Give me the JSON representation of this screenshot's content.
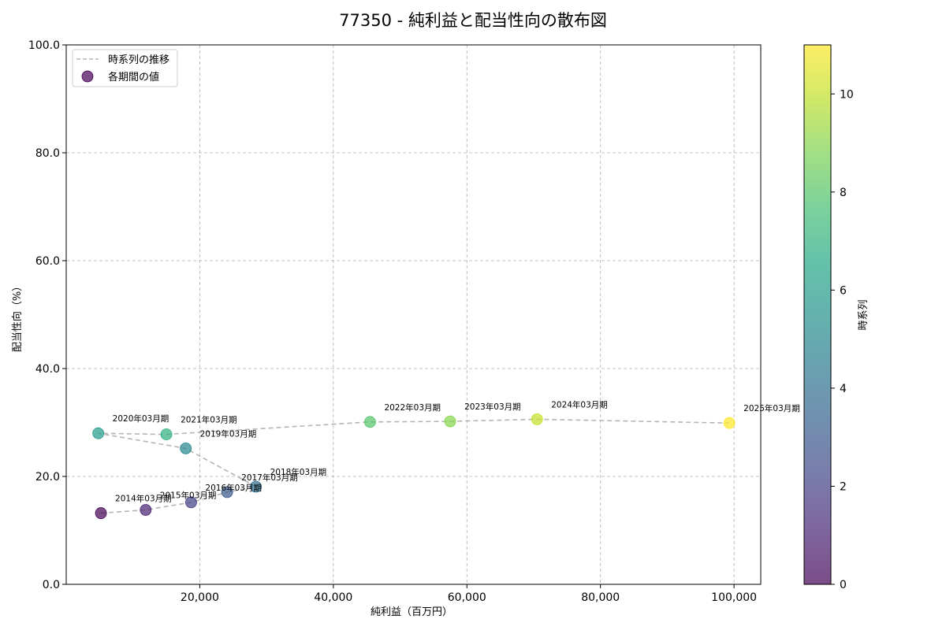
{
  "chart_data": {
    "type": "scatter",
    "title": "77350 - 純利益と配当性向の散布図",
    "xlabel": "純利益（百万円）",
    "ylabel": "配当性向（%）",
    "xlim": [
      0,
      104000
    ],
    "ylim": [
      0,
      100
    ],
    "xticks": [
      20000,
      40000,
      60000,
      80000,
      100000
    ],
    "xtick_labels": [
      "20,000",
      "40,000",
      "60,000",
      "80,000",
      "100,000"
    ],
    "yticks": [
      0,
      20,
      40,
      60,
      80,
      100
    ],
    "ytick_labels": [
      "0.0",
      "20.0",
      "40.0",
      "60.0",
      "80.0",
      "100.0"
    ],
    "grid": true,
    "legend_position": "top-left",
    "legend": {
      "line_label": "時系列の推移",
      "point_label": "各期間の値"
    },
    "colorbar": {
      "label": "時系列",
      "range": [
        0,
        11
      ],
      "ticks": [
        0,
        2,
        4,
        6,
        8,
        10
      ],
      "tick_labels": [
        "0",
        "2",
        "4",
        "6",
        "8",
        "10"
      ],
      "colormap": "viridis"
    },
    "points": [
      {
        "label": "2014年03月期",
        "x": 5200,
        "y": 13.2,
        "t": 0
      },
      {
        "label": "2015年03月期",
        "x": 11900,
        "y": 13.8,
        "t": 1
      },
      {
        "label": "2016年03月期",
        "x": 18700,
        "y": 15.2,
        "t": 2
      },
      {
        "label": "2017年03月期",
        "x": 24100,
        "y": 17.1,
        "t": 3
      },
      {
        "label": "2018年03月期",
        "x": 28400,
        "y": 18.1,
        "t": 4
      },
      {
        "label": "2019年03月期",
        "x": 17900,
        "y": 25.2,
        "t": 5
      },
      {
        "label": "2020年03月期",
        "x": 4800,
        "y": 28.0,
        "t": 6
      },
      {
        "label": "2021年03月期",
        "x": 15000,
        "y": 27.8,
        "t": 7
      },
      {
        "label": "2022年03月期",
        "x": 45500,
        "y": 30.1,
        "t": 8
      },
      {
        "label": "2023年03月期",
        "x": 57500,
        "y": 30.2,
        "t": 9
      },
      {
        "label": "2024年03月期",
        "x": 70500,
        "y": 30.6,
        "t": 10
      },
      {
        "label": "2025年03月期",
        "x": 99300,
        "y": 29.9,
        "t": 11
      }
    ]
  }
}
